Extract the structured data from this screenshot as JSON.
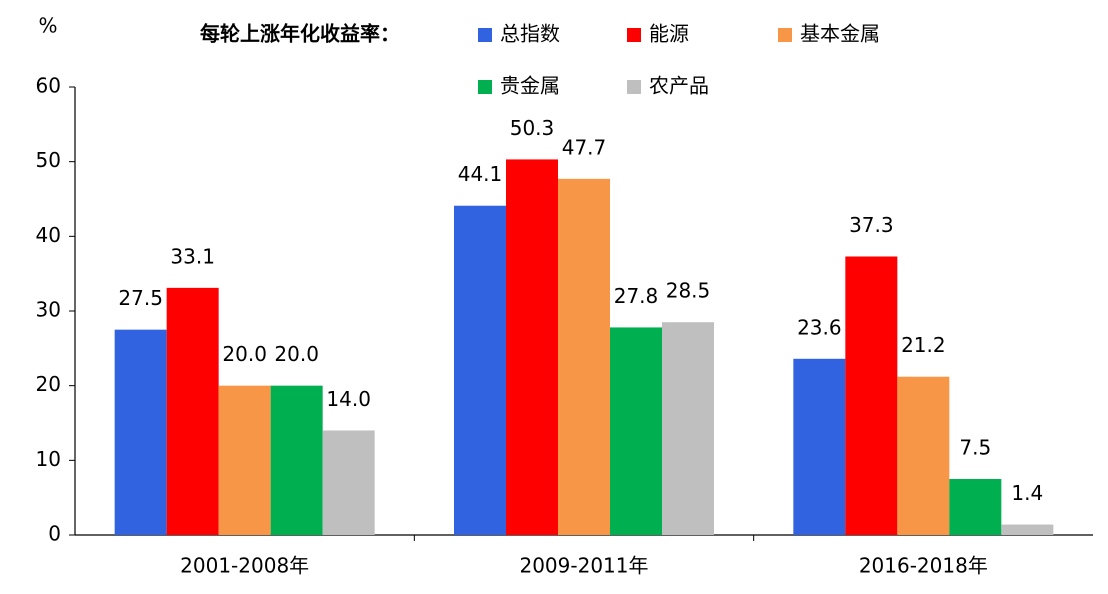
{
  "chart_data": {
    "type": "bar",
    "title": "每轮上涨年化收益率：",
    "y_label": "%",
    "categories": [
      "2001-2008年",
      "2009-2011年",
      "2016-2018年"
    ],
    "series": [
      {
        "name": "总指数",
        "color": "#3163e0",
        "values": [
          27.5,
          44.1,
          23.6
        ],
        "value_labels": [
          "27.5",
          "44.1",
          "23.6"
        ]
      },
      {
        "name": "能源",
        "color": "#ff0000",
        "values": [
          33.1,
          50.3,
          37.3
        ],
        "value_labels": [
          "33.1",
          "50.3",
          "37.3"
        ]
      },
      {
        "name": "基本金属",
        "color": "#f79646",
        "values": [
          20,
          47.7,
          21.2
        ],
        "value_labels": [
          "20.0",
          "47.7",
          "21.2"
        ]
      },
      {
        "name": "贵金属",
        "color": "#00b050",
        "values": [
          20,
          27.8,
          7.5
        ],
        "value_labels": [
          "20.0",
          "27.8",
          "7.5"
        ]
      },
      {
        "name": "农产品",
        "color": "#bfbfbf",
        "values": [
          14,
          28.5,
          1.4
        ],
        "value_labels": [
          "14.0",
          "28.5",
          "1.4"
        ]
      }
    ],
    "ylim": [
      0,
      60
    ],
    "yticks": [
      0,
      10,
      20,
      30,
      40,
      50,
      60
    ],
    "grid": false
  }
}
